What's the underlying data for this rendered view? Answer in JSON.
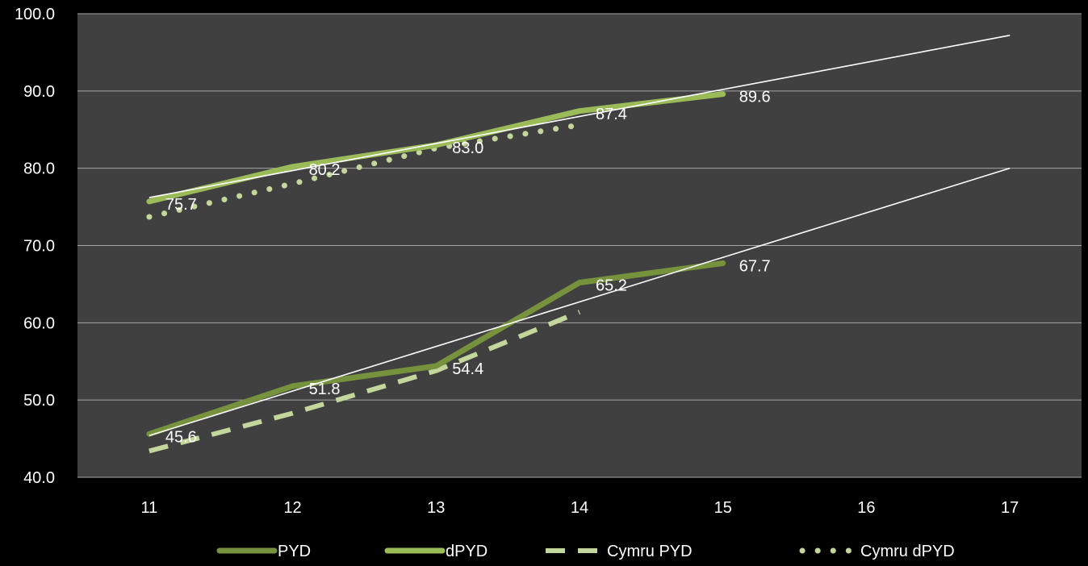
{
  "chart_data": {
    "type": "line",
    "title": "",
    "xlabel": "",
    "ylabel": "",
    "x": [
      11,
      12,
      13,
      14,
      15,
      16,
      17
    ],
    "x_tick_labels": [
      "11",
      "12",
      "13",
      "14",
      "15",
      "16",
      "17"
    ],
    "ylim": [
      40,
      100
    ],
    "y_ticks": [
      40,
      50,
      60,
      70,
      80,
      90,
      100
    ],
    "y_tick_labels": [
      "40.0",
      "50.0",
      "60.0",
      "70.0",
      "80.0",
      "90.0",
      "100.0"
    ],
    "grid": true,
    "legend_position": "bottom",
    "colors": {
      "background": "#000000",
      "plot_area": "#404040",
      "grid": "#a6a6a6",
      "axis_text": "#ffffff",
      "pyd": "#76923c",
      "dpyd": "#9bbb59",
      "cymru": "#c3d69b",
      "trend": "#ffffff"
    },
    "series": [
      {
        "name": "PYD",
        "style": "solid",
        "color": "#76923c",
        "points": [
          [
            11,
            45.6
          ],
          [
            12,
            51.8
          ],
          [
            13,
            54.4
          ],
          [
            14,
            65.2
          ],
          [
            15,
            67.7
          ]
        ],
        "labels": [
          "45.6",
          "51.8",
          "54.4",
          "65.2",
          "67.7"
        ]
      },
      {
        "name": "dPYD",
        "style": "solid",
        "color": "#9bbb59",
        "points": [
          [
            11,
            75.7
          ],
          [
            12,
            80.2
          ],
          [
            13,
            83.0
          ],
          [
            14,
            87.4
          ],
          [
            15,
            89.6
          ]
        ],
        "labels": [
          "75.7",
          "80.2",
          "83.0",
          "87.4",
          "89.6"
        ]
      },
      {
        "name": "Cymru PYD",
        "style": "dashed",
        "color": "#c3d69b",
        "points": [
          [
            11,
            43.4
          ],
          [
            12,
            48.3
          ],
          [
            13,
            53.8
          ],
          [
            14,
            61.4
          ]
        ],
        "labels": []
      },
      {
        "name": "Cymru dPYD",
        "style": "dotted",
        "color": "#c3d69b",
        "points": [
          [
            11,
            73.7
          ],
          [
            12,
            78.0
          ],
          [
            13,
            82.6
          ],
          [
            14,
            85.6
          ]
        ],
        "labels": []
      }
    ],
    "trendlines": [
      {
        "of": "PYD",
        "points": [
          [
            11,
            45.4
          ],
          [
            17,
            80.0
          ]
        ]
      },
      {
        "of": "dPYD",
        "points": [
          [
            11,
            76.2
          ],
          [
            17,
            97.2
          ]
        ]
      }
    ]
  }
}
